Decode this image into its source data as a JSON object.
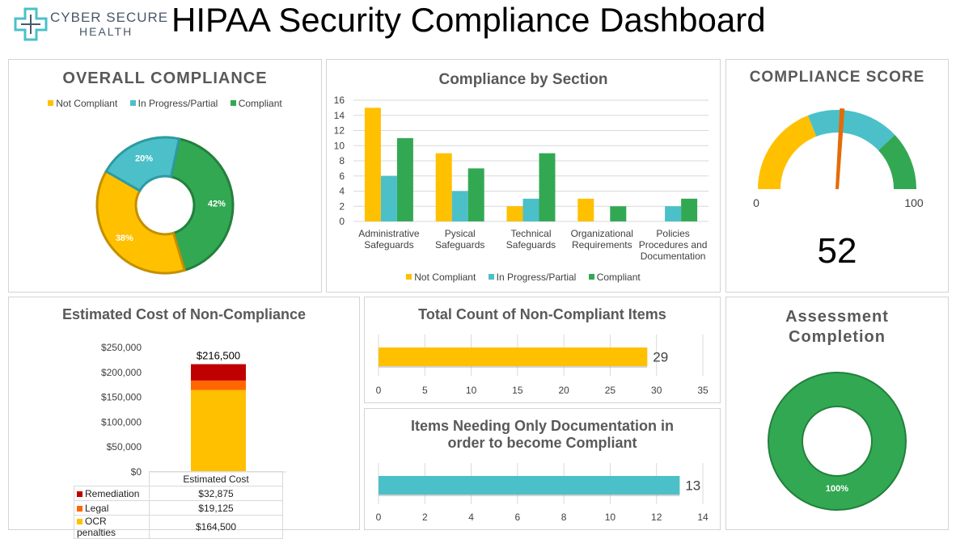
{
  "header": {
    "logo_line1": "CYBER SECURE",
    "logo_line2": "HEALTH",
    "title": "HIPAA Security Compliance Dashboard"
  },
  "colors": {
    "not_compliant": "#FFC000",
    "in_progress": "#4BC0C8",
    "compliant": "#33A853",
    "remediation": "#C00000",
    "legal": "#FF6600",
    "needle": "#E36C09"
  },
  "legend_labels": {
    "not_compliant": "Not Compliant",
    "in_progress": "In Progress/Partial",
    "compliant": "Compliant"
  },
  "overall": {
    "title": "OVERALL COMPLIANCE"
  },
  "section": {
    "title": "Compliance by Section"
  },
  "score": {
    "title": "COMPLIANCE SCORE"
  },
  "cost": {
    "title": "Estimated Cost of Non-Compliance"
  },
  "count": {
    "title": "Total Count of Non-Compliant Items"
  },
  "docs": {
    "title_line1": "Items Needing Only Documentation in",
    "title_line2": "order to become Compliant"
  },
  "assessment": {
    "title_line1": "Assessment",
    "title_line2": "Completion"
  },
  "chart_data": [
    {
      "id": "overall",
      "type": "pie",
      "title": "OVERALL COMPLIANCE",
      "labels": [
        "Not Compliant",
        "In Progress/Partial",
        "Compliant"
      ],
      "values": [
        38,
        20,
        42
      ],
      "value_labels": [
        "38%",
        "20%",
        "42%"
      ]
    },
    {
      "id": "section",
      "type": "bar",
      "title": "Compliance by Section",
      "categories": [
        [
          "Administrative",
          "Safeguards"
        ],
        [
          "Pysical",
          "Safeguards"
        ],
        [
          "Technical",
          "Safeguards"
        ],
        [
          "Organizational",
          "Requirements"
        ],
        [
          "Policies",
          "Procedures and",
          "Documentation"
        ]
      ],
      "series": [
        {
          "name": "Not Compliant",
          "values": [
            15,
            9,
            2,
            3,
            0
          ]
        },
        {
          "name": "In Progress/Partial",
          "values": [
            6,
            4,
            3,
            0,
            2
          ]
        },
        {
          "name": "Compliant",
          "values": [
            11,
            7,
            9,
            2,
            3
          ]
        }
      ],
      "ylim": [
        0,
        16
      ],
      "yticks": [
        "0",
        "2",
        "4",
        "6",
        "8",
        "10",
        "12",
        "14",
        "16"
      ],
      "grid": true,
      "legend": "bottom"
    },
    {
      "id": "score",
      "type": "gauge",
      "title": "COMPLIANCE SCORE",
      "value": 52,
      "value_label": "52",
      "min": 0,
      "max": 100,
      "min_label": "0",
      "max_label": "100",
      "bands": [
        {
          "name": "Not Compliant",
          "from": 0,
          "to": 38
        },
        {
          "name": "In Progress/Partial",
          "from": 38,
          "to": 76
        },
        {
          "name": "Compliant",
          "from": 76,
          "to": 100
        }
      ]
    },
    {
      "id": "cost",
      "type": "bar",
      "title": "Estimated Cost of Non-Compliance",
      "categories": [
        "Estimated Cost"
      ],
      "stacked": true,
      "series": [
        {
          "name": "Remediation",
          "values": [
            32875
          ],
          "display": "$32,875"
        },
        {
          "name": "Legal",
          "values": [
            19125
          ],
          "display": "$19,125"
        },
        {
          "name": "OCR penalties",
          "values": [
            164500
          ],
          "display": "$164,500"
        }
      ],
      "total": 216500,
      "total_label": "$216,500",
      "ylim": [
        0,
        250000
      ],
      "yticks": [
        "$0",
        "$50,000",
        "$100,000",
        "$150,000",
        "$200,000",
        "$250,000"
      ],
      "grid": false
    },
    {
      "id": "count",
      "type": "bar",
      "orientation": "horizontal",
      "title": "Total Count of Non-Compliant Items",
      "values": [
        29
      ],
      "value_label": "29",
      "xlim": [
        0,
        35
      ],
      "xticks": [
        "0",
        "5",
        "10",
        "15",
        "20",
        "25",
        "30",
        "35"
      ],
      "grid": true
    },
    {
      "id": "docs",
      "type": "bar",
      "orientation": "horizontal",
      "title": "Items Needing Only Documentation in order to become Compliant",
      "values": [
        13
      ],
      "value_label": "13",
      "xlim": [
        0,
        14
      ],
      "xticks": [
        "0",
        "2",
        "4",
        "6",
        "8",
        "10",
        "12",
        "14"
      ],
      "grid": true
    },
    {
      "id": "assessment",
      "type": "pie",
      "title": "Assessment Completion",
      "values": [
        100
      ],
      "value_labels": [
        "100%"
      ]
    }
  ]
}
